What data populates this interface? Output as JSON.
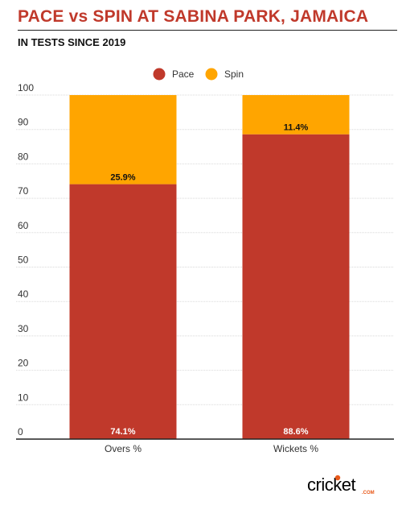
{
  "title": "PACE vs SPIN AT SABINA PARK, JAMAICA",
  "subtitle": "IN TESTS SINCE 2019",
  "logo": {
    "text": "cricket",
    "sub": ".COM"
  },
  "chart_data": {
    "type": "bar",
    "stacked": true,
    "categories": [
      "Overs %",
      "Wickets %"
    ],
    "series": [
      {
        "name": "Pace",
        "color": "#c0392b",
        "values": [
          74.1,
          88.6
        ],
        "labels": [
          "74.1%",
          "88.6%"
        ]
      },
      {
        "name": "Spin",
        "color": "#ffa500",
        "values": [
          25.9,
          11.4
        ],
        "labels": [
          "25.9%",
          "11.4%"
        ]
      }
    ],
    "ylim": [
      0,
      100
    ],
    "yticks": [
      0,
      10,
      20,
      30,
      40,
      50,
      60,
      70,
      80,
      90,
      100
    ],
    "grid": true,
    "legend": "top-center"
  }
}
